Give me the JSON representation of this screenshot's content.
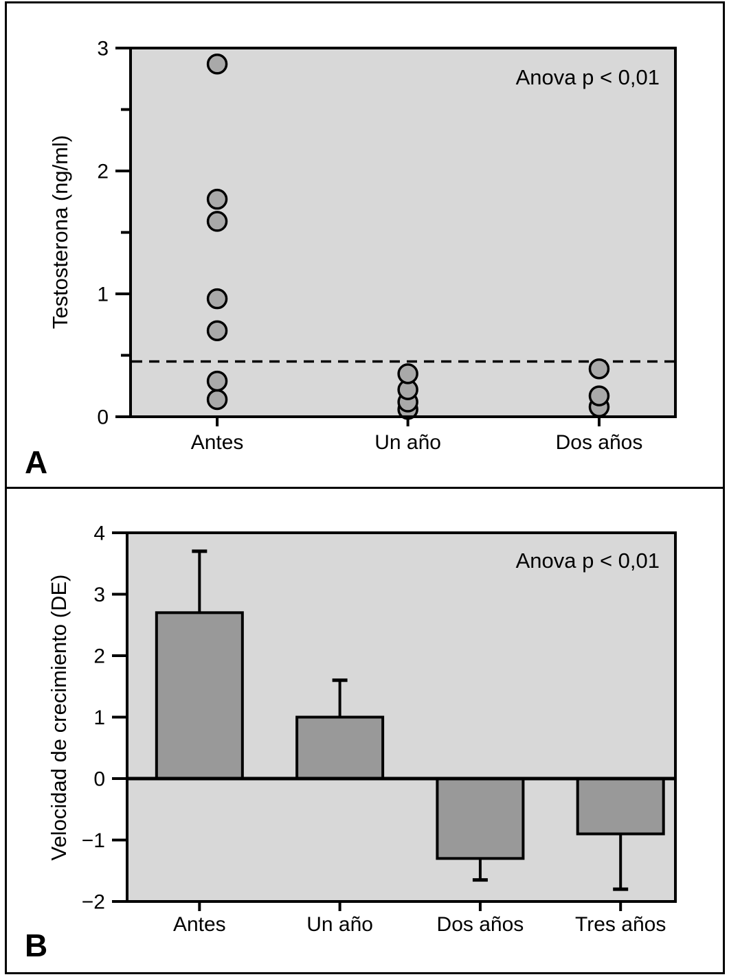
{
  "figure": {
    "panels": [
      {
        "letter": "A"
      },
      {
        "letter": "B"
      }
    ]
  },
  "colors": {
    "page_background": "#ffffff",
    "plot_background": "#d8d8d8",
    "point_fill": "#a9a9a9",
    "bar_fill": "#999999",
    "axis": "#000000"
  },
  "chart_data": [
    {
      "panel": "A",
      "type": "scatter",
      "annotation": "Anova p < 0,01",
      "ylabel": "Testosterona (ng/ml)",
      "ylim": [
        0,
        3
      ],
      "yticks_major": [
        0,
        1,
        2,
        3
      ],
      "yticks_minor": [
        0.5,
        1.5,
        2.5
      ],
      "categories": [
        "Antes",
        "Un año",
        "Dos años"
      ],
      "series": [
        {
          "category": "Antes",
          "values": [
            2.87,
            1.77,
            1.59,
            0.96,
            0.7,
            0.29,
            0.14
          ]
        },
        {
          "category": "Un año",
          "values": [
            0.35,
            0.22,
            0.12,
            0.06
          ]
        },
        {
          "category": "Dos años",
          "values": [
            0.39,
            0.17,
            0.08
          ]
        }
      ],
      "reference_line": {
        "value": 0.45,
        "style": "dashed"
      },
      "grid": false,
      "legend": false
    },
    {
      "panel": "B",
      "type": "bar",
      "annotation": "Anova p < 0,01",
      "ylabel": "Velocidad de crecimiento (DE)",
      "ylim": [
        -2,
        4
      ],
      "yticks_major": [
        -2,
        -1,
        0,
        1,
        2,
        3,
        4
      ],
      "categories": [
        "Antes",
        "Un año",
        "Dos años",
        "Tres años"
      ],
      "values": [
        2.7,
        1.0,
        -1.3,
        -0.9
      ],
      "errors": [
        1.0,
        0.6,
        0.35,
        0.9
      ],
      "grid": false,
      "legend": false
    }
  ]
}
